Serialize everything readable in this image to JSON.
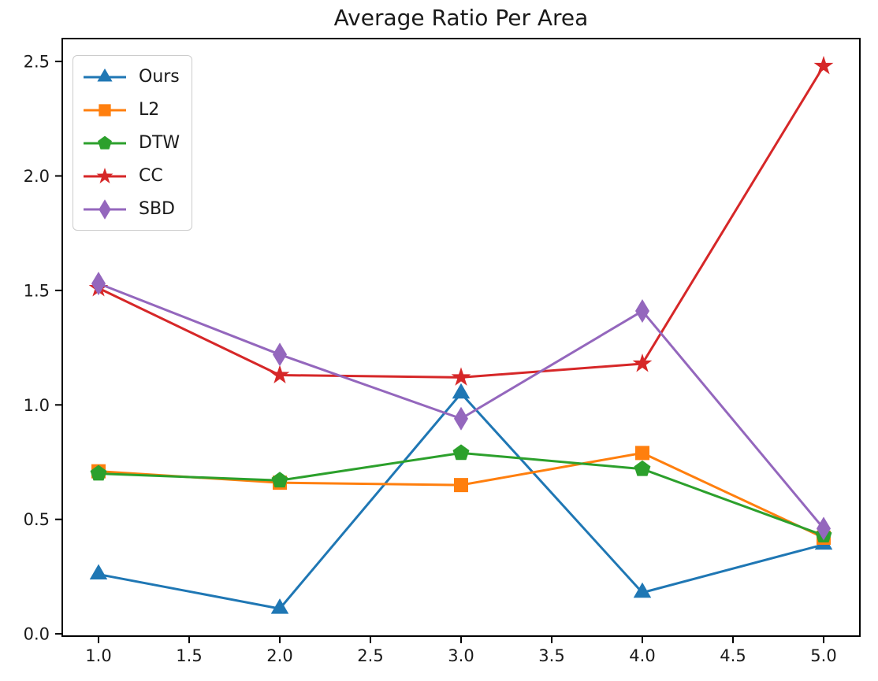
{
  "chart_data": {
    "type": "line",
    "title": "Average Ratio Per Area",
    "xlabel": "",
    "ylabel": "",
    "x": [
      1.0,
      2.0,
      3.0,
      4.0,
      5.0
    ],
    "series": [
      {
        "name": "Ours",
        "color": "#1f77b4",
        "marker": "triangle-up-icon",
        "values": [
          0.26,
          0.11,
          1.05,
          0.18,
          0.39
        ]
      },
      {
        "name": "L2",
        "color": "#ff7f0e",
        "marker": "square-icon",
        "values": [
          0.71,
          0.66,
          0.65,
          0.79,
          0.42
        ]
      },
      {
        "name": "DTW",
        "color": "#2ca02c",
        "marker": "pentagon-icon",
        "values": [
          0.7,
          0.67,
          0.79,
          0.72,
          0.43
        ]
      },
      {
        "name": "CC",
        "color": "#d62728",
        "marker": "star-icon",
        "values": [
          1.51,
          1.13,
          1.12,
          1.18,
          2.48
        ]
      },
      {
        "name": "SBD",
        "color": "#9467bd",
        "marker": "diamond-thin-icon",
        "values": [
          1.53,
          1.22,
          0.94,
          1.41,
          0.46
        ]
      }
    ],
    "x_ticks": [
      "1.0",
      "1.5",
      "2.0",
      "2.5",
      "3.0",
      "3.5",
      "4.0",
      "4.5",
      "5.0"
    ],
    "y_ticks": [
      "0.0",
      "0.5",
      "1.0",
      "1.5",
      "2.0",
      "2.5"
    ],
    "xlim": [
      0.8,
      5.2
    ],
    "ylim": [
      -0.01,
      2.6
    ],
    "grid": false,
    "legend_position": "upper-left",
    "axis_color": "#000000",
    "text_color": "#1a1a1a"
  }
}
